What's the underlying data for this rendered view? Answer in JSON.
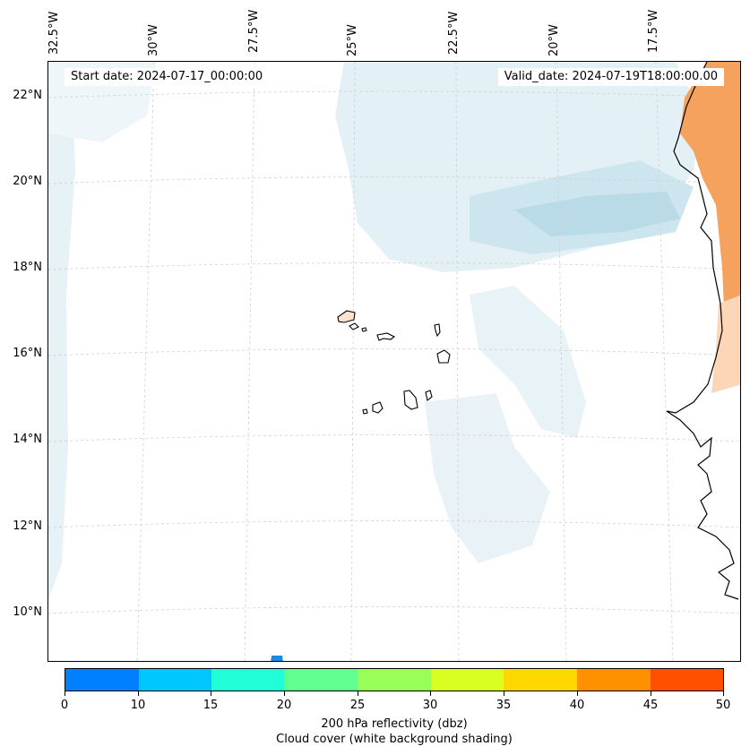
{
  "header": {
    "start_date": "Start date: 2024-07-17_00:00:00",
    "valid_date": "Valid_date: 2024-07-19T18:00:00.00"
  },
  "longitude_labels": [
    "32.5°W",
    "30°W",
    "27.5°W",
    "25°W",
    "22.5°W",
    "20°W",
    "17.5°W"
  ],
  "latitude_labels": [
    "22°N",
    "20°N",
    "18°N",
    "16°N",
    "14°N",
    "12°N",
    "10°N"
  ],
  "colorbar": {
    "ticks": [
      "0",
      "10",
      "15",
      "20",
      "25",
      "30",
      "35",
      "40",
      "45",
      "50"
    ],
    "colors": [
      "#0080ff",
      "#00c8ff",
      "#20ffd8",
      "#60ff90",
      "#98ff58",
      "#d8ff20",
      "#ffd800",
      "#ff9000",
      "#ff5000"
    ],
    "label_line1": "200 hPa reflectivity (dbz)",
    "label_line2": "Cloud cover (white background shading)"
  },
  "colors": {
    "cloud": "#cfe6ef",
    "cloud_dense": "#a9d3e3",
    "land_reflectivity": "#f5a25f",
    "coast": "#000000",
    "grid": "#d0d0d0"
  }
}
